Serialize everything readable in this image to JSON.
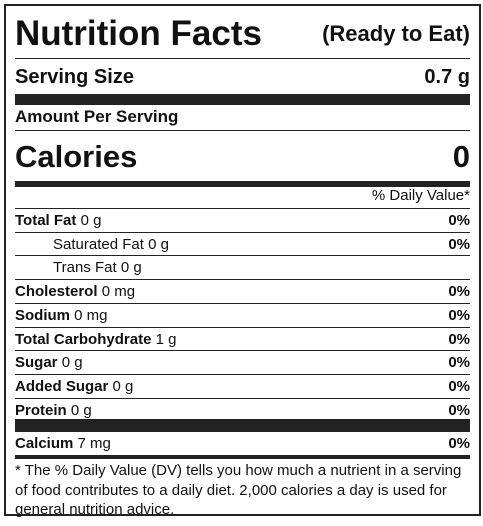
{
  "header": {
    "title": "Nutrition Facts",
    "subtitle": "(Ready to Eat)"
  },
  "serving": {
    "label": "Serving Size",
    "value": "0.7 g"
  },
  "amount_per_serving": "Amount Per Serving",
  "calories": {
    "label": "Calories",
    "value": 0
  },
  "daily_value_header": "% Daily Value*",
  "nutrients": [
    {
      "name": "Total Fat",
      "amount": "0 g",
      "dv": "0%"
    },
    {
      "name": "Saturated Fat",
      "amount": "0 g",
      "dv": "0%"
    },
    {
      "name": "Trans Fat",
      "amount": "0 g"
    },
    {
      "name": "Cholesterol",
      "amount": "0 mg",
      "dv": "0%"
    },
    {
      "name": "Sodium",
      "amount": "0 mg",
      "dv": "0%"
    },
    {
      "name": "Total Carbohydrate",
      "amount": "1 g",
      "dv": "0%"
    },
    {
      "name": "Sugar",
      "amount": "0 g",
      "dv": "0%"
    },
    {
      "name": "Added Sugar",
      "amount": "0 g",
      "dv": "0%"
    },
    {
      "name": "Protein",
      "amount": "0 g",
      "dv": "0%"
    }
  ],
  "minerals": [
    {
      "name": "Calcium",
      "amount": "7 mg",
      "dv": "0%"
    }
  ],
  "footnote": "* The % Daily Value (DV) tells you how much a nutrient in a serving of food contributes to a daily diet. 2,000 calories a day is used for general nutrition advice."
}
